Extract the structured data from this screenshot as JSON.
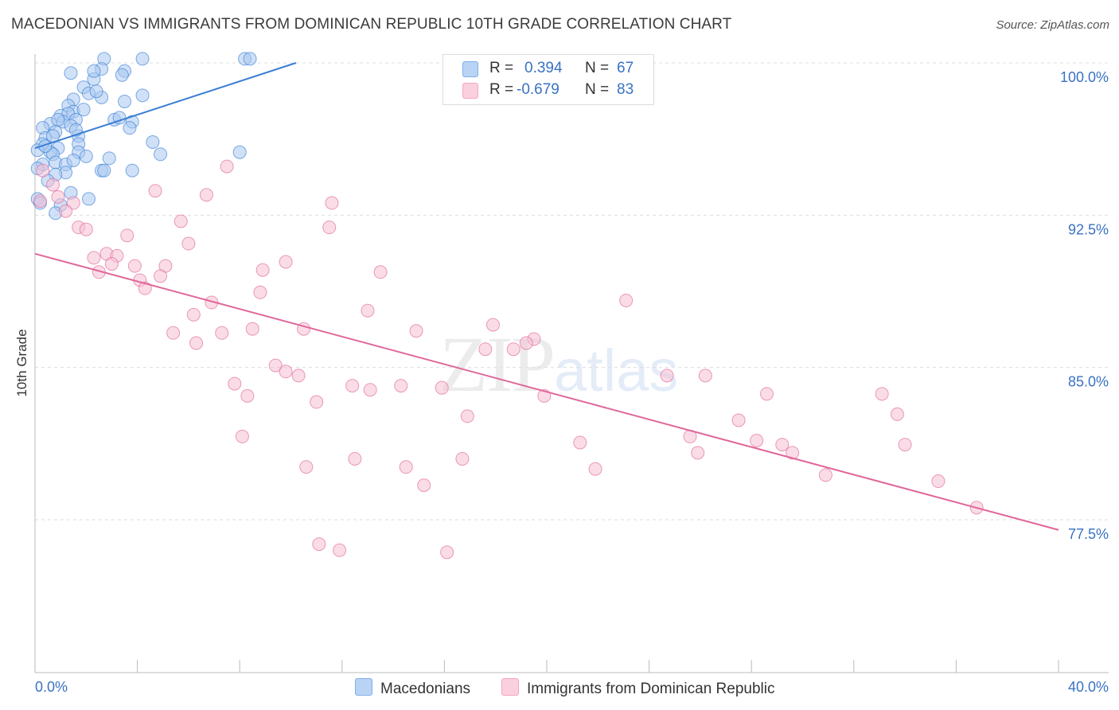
{
  "header": {
    "title": "MACEDONIAN VS IMMIGRANTS FROM DOMINICAN REPUBLIC 10TH GRADE CORRELATION CHART",
    "source": "Source: ZipAtlas.com"
  },
  "legend": {
    "rows": [
      {
        "r_label": "R =",
        "r_value": "0.394",
        "n_label": "N =",
        "n_value": "67",
        "color": "#7fb0ea"
      },
      {
        "r_label": "R =",
        "r_value": "-0.679",
        "n_label": "N =",
        "n_value": "83",
        "color": "#f4a6bf"
      }
    ]
  },
  "watermark": {
    "zip": "ZIP",
    "atlas": "atlas"
  },
  "bottom_legend": [
    {
      "label": "Macedonians",
      "color": "#7fb0ea"
    },
    {
      "label": "Immigrants from Dominican Republic",
      "color": "#f4a6bf"
    }
  ],
  "chart_data": {
    "type": "scatter",
    "title": "MACEDONIAN VS IMMIGRANTS FROM DOMINICAN REPUBLIC 10TH GRADE CORRELATION CHART",
    "xlabel": "",
    "ylabel": "10th Grade",
    "xlim": [
      0,
      40
    ],
    "ylim": [
      71.5,
      101.5
    ],
    "x_tick_labels": [
      "0.0%",
      "40.0%"
    ],
    "y_ticks": [
      100.0,
      92.5,
      85.0,
      77.5
    ],
    "y_tick_labels": [
      "100.0%",
      "92.5%",
      "85.0%",
      "77.5%"
    ],
    "grid": true,
    "legend_position": "top-center",
    "series": [
      {
        "name": "Macedonians",
        "color": "#3a7fd5",
        "fill": "#a9c8f0",
        "trend": {
          "x": [
            0.0,
            10.2
          ],
          "y": [
            95.8,
            100.0
          ]
        },
        "points": [
          [
            2.7,
            100.2
          ],
          [
            4.2,
            100.2
          ],
          [
            8.2,
            100.2
          ],
          [
            8.4,
            100.2
          ],
          [
            2.6,
            99.7
          ],
          [
            1.4,
            99.5
          ],
          [
            2.3,
            99.2
          ],
          [
            2.3,
            99.6
          ],
          [
            3.5,
            99.6
          ],
          [
            3.4,
            99.4
          ],
          [
            1.9,
            98.8
          ],
          [
            2.1,
            98.5
          ],
          [
            4.2,
            98.4
          ],
          [
            2.6,
            98.3
          ],
          [
            3.5,
            98.1
          ],
          [
            1.5,
            98.2
          ],
          [
            1.3,
            97.9
          ],
          [
            1.5,
            97.6
          ],
          [
            1.9,
            97.7
          ],
          [
            1.0,
            97.4
          ],
          [
            1.3,
            97.5
          ],
          [
            3.1,
            97.2
          ],
          [
            3.8,
            97.1
          ],
          [
            0.6,
            97.0
          ],
          [
            1.1,
            97.1
          ],
          [
            1.6,
            97.2
          ],
          [
            0.3,
            96.8
          ],
          [
            0.8,
            96.6
          ],
          [
            1.4,
            96.9
          ],
          [
            3.7,
            96.8
          ],
          [
            0.4,
            96.3
          ],
          [
            0.7,
            96.4
          ],
          [
            1.7,
            96.4
          ],
          [
            0.3,
            96.0
          ],
          [
            0.9,
            95.8
          ],
          [
            1.7,
            96.0
          ],
          [
            4.6,
            96.1
          ],
          [
            0.1,
            95.7
          ],
          [
            0.6,
            95.6
          ],
          [
            0.7,
            95.5
          ],
          [
            1.7,
            95.6
          ],
          [
            8.0,
            95.6
          ],
          [
            4.9,
            95.5
          ],
          [
            2.9,
            95.3
          ],
          [
            0.8,
            95.1
          ],
          [
            0.3,
            95.0
          ],
          [
            1.2,
            95.0
          ],
          [
            1.5,
            95.2
          ],
          [
            0.1,
            94.8
          ],
          [
            2.6,
            94.7
          ],
          [
            2.7,
            94.7
          ],
          [
            3.8,
            94.7
          ],
          [
            1.2,
            94.6
          ],
          [
            0.8,
            94.5
          ],
          [
            1.4,
            93.6
          ],
          [
            0.1,
            93.3
          ],
          [
            2.1,
            93.3
          ],
          [
            0.2,
            93.1
          ],
          [
            1.0,
            93.0
          ],
          [
            0.8,
            92.6
          ],
          [
            0.4,
            95.9
          ],
          [
            0.9,
            97.2
          ],
          [
            2.4,
            98.6
          ],
          [
            1.6,
            96.7
          ],
          [
            2.0,
            95.4
          ],
          [
            0.5,
            94.2
          ],
          [
            3.3,
            97.3
          ]
        ]
      },
      {
        "name": "Immigrants from Dominican Republic",
        "color": "#e0679a",
        "fill": "#f6bfd3",
        "trend": {
          "x": [
            0.0,
            40.0
          ],
          "y": [
            90.6,
            77.0
          ]
        },
        "points": [
          [
            7.5,
            94.9
          ],
          [
            0.3,
            94.7
          ],
          [
            0.7,
            94.0
          ],
          [
            4.7,
            93.7
          ],
          [
            6.7,
            93.5
          ],
          [
            0.9,
            93.4
          ],
          [
            0.2,
            93.2
          ],
          [
            11.6,
            93.1
          ],
          [
            1.5,
            93.1
          ],
          [
            1.2,
            92.7
          ],
          [
            5.7,
            92.2
          ],
          [
            1.7,
            91.9
          ],
          [
            2.0,
            91.8
          ],
          [
            11.5,
            91.9
          ],
          [
            3.6,
            91.5
          ],
          [
            6.0,
            91.1
          ],
          [
            2.8,
            90.6
          ],
          [
            3.2,
            90.5
          ],
          [
            2.3,
            90.4
          ],
          [
            3.0,
            90.1
          ],
          [
            9.8,
            90.2
          ],
          [
            3.9,
            90.0
          ],
          [
            5.1,
            90.0
          ],
          [
            8.9,
            89.8
          ],
          [
            13.5,
            89.7
          ],
          [
            2.5,
            89.7
          ],
          [
            4.9,
            89.5
          ],
          [
            4.1,
            89.3
          ],
          [
            4.3,
            88.9
          ],
          [
            8.8,
            88.7
          ],
          [
            23.1,
            88.3
          ],
          [
            6.9,
            88.2
          ],
          [
            13.0,
            87.8
          ],
          [
            6.2,
            87.6
          ],
          [
            17.9,
            87.1
          ],
          [
            8.5,
            86.9
          ],
          [
            10.5,
            86.9
          ],
          [
            14.9,
            86.8
          ],
          [
            5.4,
            86.7
          ],
          [
            7.3,
            86.7
          ],
          [
            6.3,
            86.2
          ],
          [
            19.5,
            86.4
          ],
          [
            17.6,
            85.9
          ],
          [
            18.7,
            85.9
          ],
          [
            19.2,
            86.2
          ],
          [
            9.4,
            85.1
          ],
          [
            9.8,
            84.8
          ],
          [
            10.3,
            84.6
          ],
          [
            24.7,
            84.6
          ],
          [
            26.2,
            84.6
          ],
          [
            7.8,
            84.2
          ],
          [
            12.4,
            84.1
          ],
          [
            14.3,
            84.1
          ],
          [
            15.9,
            84.0
          ],
          [
            13.1,
            83.9
          ],
          [
            8.3,
            83.6
          ],
          [
            19.9,
            83.6
          ],
          [
            28.6,
            83.7
          ],
          [
            33.1,
            83.7
          ],
          [
            11.0,
            83.3
          ],
          [
            33.7,
            82.7
          ],
          [
            16.9,
            82.6
          ],
          [
            27.5,
            82.4
          ],
          [
            25.6,
            81.6
          ],
          [
            28.2,
            81.4
          ],
          [
            29.2,
            81.2
          ],
          [
            8.1,
            81.6
          ],
          [
            21.3,
            81.3
          ],
          [
            34.0,
            81.2
          ],
          [
            12.5,
            80.5
          ],
          [
            16.7,
            80.5
          ],
          [
            25.9,
            80.8
          ],
          [
            29.6,
            80.8
          ],
          [
            10.6,
            80.1
          ],
          [
            14.5,
            80.1
          ],
          [
            21.9,
            80.0
          ],
          [
            30.9,
            79.7
          ],
          [
            15.2,
            79.2
          ],
          [
            35.3,
            79.4
          ],
          [
            36.8,
            78.1
          ],
          [
            11.1,
            76.3
          ],
          [
            11.9,
            76.0
          ],
          [
            16.1,
            75.9
          ]
        ]
      }
    ]
  }
}
